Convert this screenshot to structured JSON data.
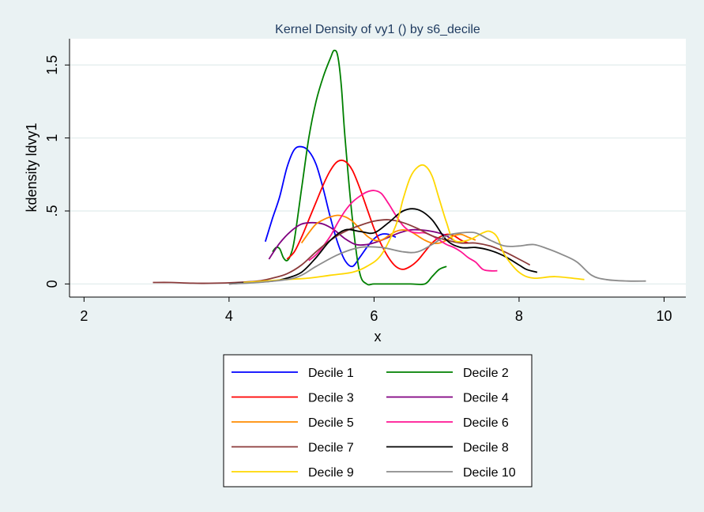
{
  "chart_data": {
    "type": "line",
    "title": "Kernel Density of vy1 () by s6_decile",
    "xlabel": "x",
    "ylabel": "kdensity ldvy1",
    "xlim": [
      1.8,
      10.3
    ],
    "ylim": [
      -0.09,
      1.68
    ],
    "xticks": [
      2,
      4,
      6,
      8,
      10
    ],
    "xtick_labels": [
      "2",
      "4",
      "6",
      "8",
      "10"
    ],
    "yticks": [
      0,
      0.5,
      1,
      1.5
    ],
    "ytick_labels": [
      "0",
      ".5",
      "1",
      "1.5"
    ],
    "grid": true,
    "legend_position": "bottom",
    "series": [
      {
        "name": "Decile 1",
        "color": "#0000ff",
        "x": [
          4.5,
          4.6,
          4.7,
          4.8,
          4.9,
          5.0,
          5.1,
          5.2,
          5.3,
          5.4,
          5.5,
          5.6,
          5.7,
          5.8,
          5.9,
          6.0,
          6.1,
          6.2,
          6.3
        ],
        "y": [
          0.29,
          0.45,
          0.6,
          0.8,
          0.92,
          0.94,
          0.91,
          0.82,
          0.65,
          0.45,
          0.28,
          0.16,
          0.12,
          0.18,
          0.25,
          0.31,
          0.34,
          0.34,
          0.32
        ]
      },
      {
        "name": "Decile 2",
        "color": "#008000",
        "x": [
          4.6,
          4.65,
          4.7,
          4.75,
          4.8,
          4.85,
          4.9,
          5.0,
          5.1,
          5.2,
          5.3,
          5.4,
          5.45,
          5.5,
          5.55,
          5.6,
          5.7,
          5.8,
          5.9,
          6.0,
          6.2,
          6.5,
          6.7,
          6.8,
          6.9,
          7.0
        ],
        "y": [
          0.22,
          0.25,
          0.24,
          0.18,
          0.16,
          0.2,
          0.3,
          0.65,
          1.0,
          1.25,
          1.42,
          1.55,
          1.6,
          1.56,
          1.35,
          1.0,
          0.45,
          0.08,
          0.0,
          0.0,
          0.0,
          0.0,
          0.0,
          0.05,
          0.1,
          0.12
        ]
      },
      {
        "name": "Decile 3",
        "color": "#ff0000",
        "x": [
          4.8,
          4.9,
          5.0,
          5.1,
          5.2,
          5.3,
          5.4,
          5.5,
          5.6,
          5.7,
          5.8,
          5.9,
          6.0,
          6.1,
          6.2,
          6.3,
          6.4,
          6.5,
          6.6,
          6.7,
          6.8,
          6.9,
          7.0,
          7.1,
          7.2,
          7.3
        ],
        "y": [
          0.17,
          0.22,
          0.32,
          0.44,
          0.56,
          0.68,
          0.78,
          0.84,
          0.84,
          0.78,
          0.66,
          0.52,
          0.38,
          0.27,
          0.18,
          0.12,
          0.1,
          0.12,
          0.16,
          0.22,
          0.28,
          0.32,
          0.34,
          0.33,
          0.3,
          0.28
        ]
      },
      {
        "name": "Decile 4",
        "color": "#800080",
        "x": [
          4.55,
          4.7,
          4.85,
          5.0,
          5.15,
          5.3,
          5.45,
          5.6,
          5.75,
          5.9,
          6.05,
          6.2,
          6.35,
          6.5,
          6.65,
          6.8,
          6.95,
          7.1
        ],
        "y": [
          0.17,
          0.28,
          0.36,
          0.41,
          0.42,
          0.41,
          0.37,
          0.31,
          0.27,
          0.27,
          0.29,
          0.32,
          0.35,
          0.37,
          0.37,
          0.36,
          0.34,
          0.3
        ]
      },
      {
        "name": "Decile 5",
        "color": "#ff8c00",
        "x": [
          5.0,
          5.1,
          5.2,
          5.3,
          5.4,
          5.5,
          5.6,
          5.7,
          5.8,
          5.9,
          6.0,
          6.1,
          6.2,
          6.3,
          6.4,
          6.5,
          6.6,
          6.7,
          6.8,
          6.9,
          7.0,
          7.1,
          7.2,
          7.3,
          7.4
        ],
        "y": [
          0.28,
          0.35,
          0.41,
          0.44,
          0.46,
          0.47,
          0.46,
          0.43,
          0.38,
          0.33,
          0.3,
          0.3,
          0.33,
          0.36,
          0.37,
          0.36,
          0.33,
          0.3,
          0.28,
          0.28,
          0.3,
          0.33,
          0.34,
          0.32,
          0.3
        ]
      },
      {
        "name": "Decile 6",
        "color": "#ff1493",
        "x": [
          5.1,
          5.2,
          5.3,
          5.4,
          5.5,
          5.6,
          5.7,
          5.8,
          5.9,
          6.0,
          6.1,
          6.2,
          6.3,
          6.4,
          6.5,
          6.6,
          6.7,
          6.8,
          6.9,
          7.0,
          7.1,
          7.2,
          7.3,
          7.4,
          7.5,
          7.6,
          7.7
        ],
        "y": [
          0.16,
          0.2,
          0.26,
          0.33,
          0.42,
          0.5,
          0.56,
          0.6,
          0.63,
          0.64,
          0.62,
          0.55,
          0.47,
          0.4,
          0.36,
          0.35,
          0.35,
          0.33,
          0.3,
          0.27,
          0.25,
          0.22,
          0.18,
          0.15,
          0.1,
          0.09,
          0.09
        ]
      },
      {
        "name": "Decile 7",
        "color": "#8b3a3a",
        "x": [
          2.95,
          3.2,
          3.5,
          3.8,
          4.1,
          4.4,
          4.6,
          4.8,
          5.0,
          5.2,
          5.4,
          5.6,
          5.8,
          6.0,
          6.2,
          6.4,
          6.6,
          6.8,
          7.0,
          7.2,
          7.4,
          7.6,
          7.8,
          8.0,
          8.15
        ],
        "y": [
          0.01,
          0.01,
          0.005,
          0.005,
          0.01,
          0.02,
          0.04,
          0.07,
          0.13,
          0.22,
          0.3,
          0.36,
          0.4,
          0.43,
          0.44,
          0.42,
          0.38,
          0.33,
          0.3,
          0.28,
          0.28,
          0.26,
          0.22,
          0.17,
          0.13
        ]
      },
      {
        "name": "Decile 8",
        "color": "#000000",
        "x": [
          4.0,
          4.3,
          4.6,
          4.8,
          5.0,
          5.2,
          5.4,
          5.6,
          5.8,
          6.0,
          6.2,
          6.4,
          6.6,
          6.8,
          7.0,
          7.2,
          7.4,
          7.6,
          7.8,
          8.0,
          8.1,
          8.25
        ],
        "y": [
          0.0,
          0.01,
          0.02,
          0.04,
          0.08,
          0.18,
          0.3,
          0.37,
          0.36,
          0.35,
          0.42,
          0.5,
          0.51,
          0.44,
          0.3,
          0.25,
          0.25,
          0.23,
          0.19,
          0.13,
          0.1,
          0.08
        ]
      },
      {
        "name": "Decile 9",
        "color": "#ffd700",
        "x": [
          4.2,
          4.5,
          4.8,
          5.1,
          5.4,
          5.7,
          5.9,
          6.1,
          6.3,
          6.4,
          6.5,
          6.6,
          6.7,
          6.8,
          6.9,
          7.0,
          7.1,
          7.3,
          7.5,
          7.6,
          7.7,
          7.8,
          8.0,
          8.2,
          8.5,
          8.9
        ],
        "y": [
          0.01,
          0.02,
          0.03,
          0.04,
          0.06,
          0.08,
          0.12,
          0.2,
          0.4,
          0.58,
          0.73,
          0.8,
          0.81,
          0.74,
          0.58,
          0.42,
          0.3,
          0.3,
          0.35,
          0.36,
          0.32,
          0.2,
          0.08,
          0.04,
          0.05,
          0.03
        ]
      },
      {
        "name": "Decile 10",
        "color": "#8c8c8c",
        "x": [
          4.0,
          4.4,
          4.8,
          5.0,
          5.2,
          5.5,
          5.8,
          6.1,
          6.4,
          6.6,
          6.8,
          7.0,
          7.2,
          7.4,
          7.6,
          7.8,
          8.0,
          8.2,
          8.4,
          8.6,
          8.8,
          9.0,
          9.2,
          9.5,
          9.75
        ],
        "y": [
          0.0,
          0.01,
          0.03,
          0.06,
          0.12,
          0.2,
          0.25,
          0.25,
          0.22,
          0.22,
          0.27,
          0.33,
          0.35,
          0.35,
          0.3,
          0.26,
          0.26,
          0.27,
          0.24,
          0.2,
          0.15,
          0.06,
          0.03,
          0.02,
          0.02
        ]
      }
    ]
  }
}
